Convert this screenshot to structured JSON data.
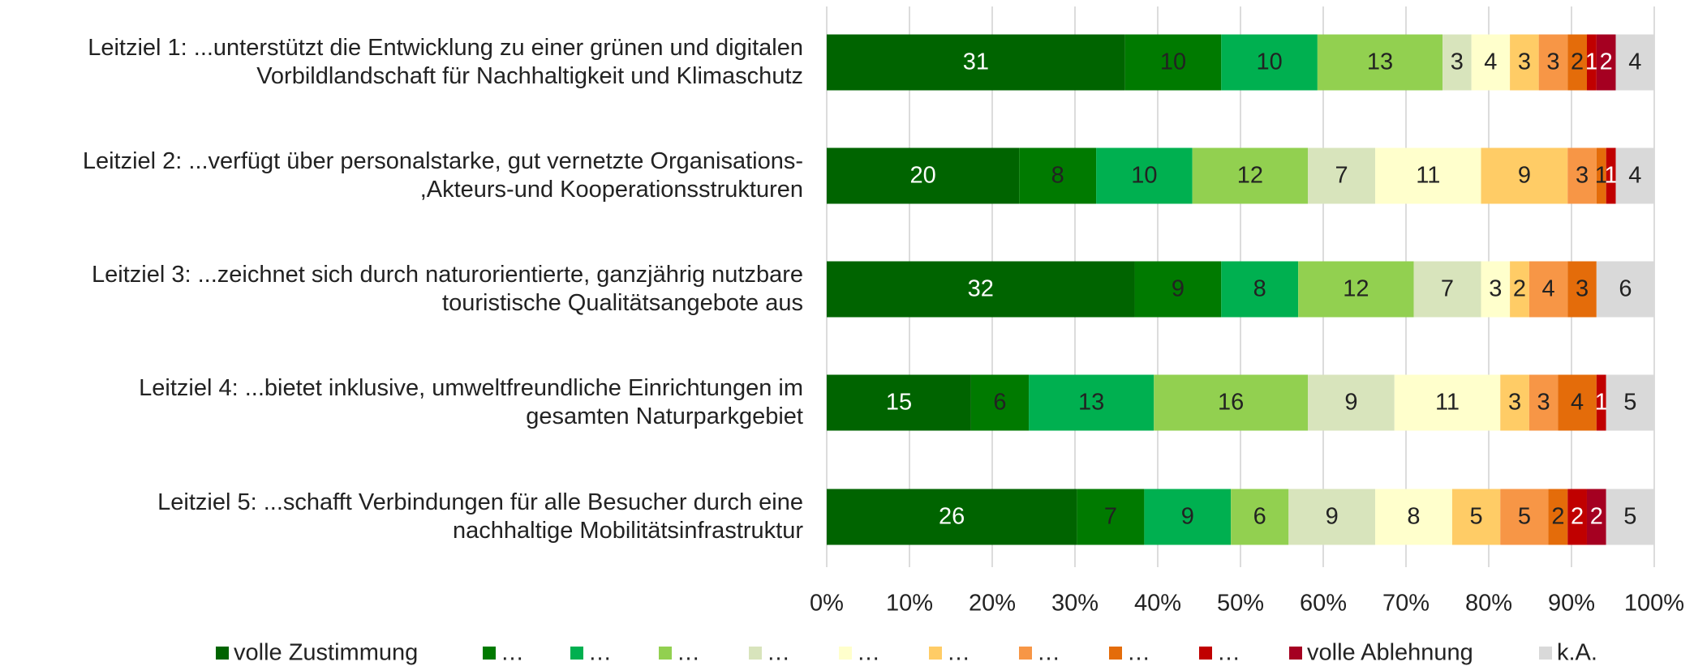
{
  "chart_data": {
    "type": "stacked_barh_percent",
    "categories": [
      "Leitziel 1: ...unterstützt die Entwicklung zu einer grünen und digitalen\nVorbildlandschaft für Nachhaltigkeit und Klimaschutz",
      "Leitziel 2: ...verfügt über personalstarke, gut vernetzte Organisations-\n,Akteurs-und Kooperationsstrukturen",
      "Leitziel 3: ...zeichnet sich durch naturorientierte, ganzjährig nutzbare\ntouristische Qualitätsangebote aus",
      "Leitziel 4: ...bietet inklusive, umweltfreundliche Einrichtungen im\ngesamten Naturparkgebiet",
      "Leitziel 5: ...schafft Verbindungen für alle Besucher durch eine\nnachhaltige Mobilitätsinfrastruktur"
    ],
    "series": [
      {
        "name": "volle Zustimmung",
        "color": "#006400",
        "values": [
          31,
          20,
          32,
          15,
          26
        ]
      },
      {
        "name": "…",
        "color": "#007a00",
        "values": [
          10,
          8,
          9,
          6,
          7
        ]
      },
      {
        "name": "…",
        "color": "#00b050",
        "values": [
          10,
          10,
          8,
          13,
          9
        ]
      },
      {
        "name": "…",
        "color": "#92d050",
        "values": [
          13,
          12,
          12,
          16,
          6
        ]
      },
      {
        "name": "…",
        "color": "#d8e4bc",
        "values": [
          3,
          7,
          7,
          9,
          9
        ]
      },
      {
        "name": "…",
        "color": "#ffffcc",
        "values": [
          4,
          11,
          3,
          11,
          8
        ]
      },
      {
        "name": "…",
        "color": "#ffcc66",
        "values": [
          3,
          9,
          2,
          3,
          5
        ]
      },
      {
        "name": "…",
        "color": "#f79646",
        "values": [
          3,
          3,
          4,
          3,
          5
        ]
      },
      {
        "name": "…",
        "color": "#e46c0a",
        "values": [
          2,
          1,
          3,
          4,
          2
        ]
      },
      {
        "name": "…",
        "color": "#c00000",
        "values": [
          1,
          1,
          0,
          1,
          2
        ]
      },
      {
        "name": "volle Ablehnung",
        "color": "#a50021",
        "values": [
          2,
          0,
          0,
          0,
          2
        ]
      },
      {
        "name": "k.A.",
        "color": "#d9d9d9",
        "values": [
          4,
          4,
          6,
          5,
          5
        ]
      }
    ],
    "xlim": [
      0,
      100
    ],
    "xticks": [
      {
        "value": 0,
        "label": "0%"
      },
      {
        "value": 10,
        "label": "10%"
      },
      {
        "value": 20,
        "label": "20%"
      },
      {
        "value": 30,
        "label": "30%"
      },
      {
        "value": 40,
        "label": "40%"
      },
      {
        "value": 50,
        "label": "50%"
      },
      {
        "value": 60,
        "label": "60%"
      },
      {
        "value": 70,
        "label": "70%"
      },
      {
        "value": 80,
        "label": "80%"
      },
      {
        "value": 90,
        "label": "90%"
      },
      {
        "value": 100,
        "label": "100%"
      }
    ],
    "grid": true,
    "legend": "bottom"
  }
}
